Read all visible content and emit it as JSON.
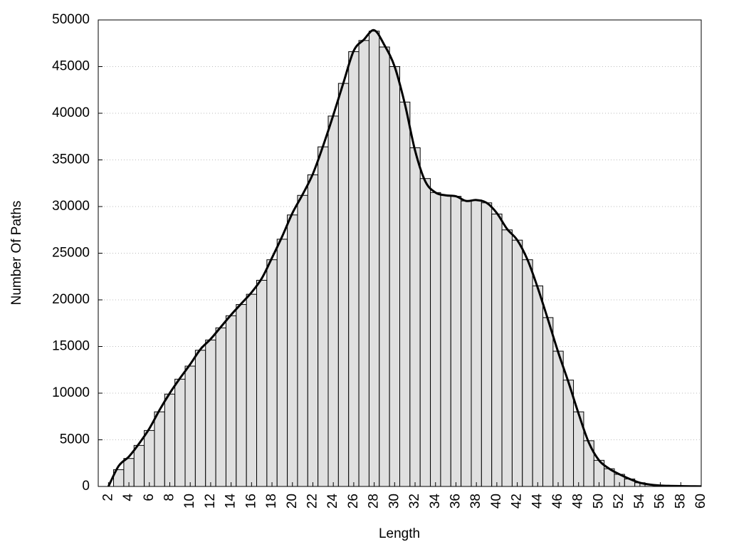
{
  "chart_data": {
    "type": "bar",
    "x_label": "Length",
    "y_label": "Number Of Paths",
    "x": [
      2,
      3,
      4,
      5,
      6,
      7,
      8,
      9,
      10,
      11,
      12,
      13,
      14,
      15,
      16,
      17,
      18,
      19,
      20,
      21,
      22,
      23,
      24,
      25,
      26,
      27,
      28,
      29,
      30,
      31,
      32,
      33,
      34,
      35,
      36,
      37,
      38,
      39,
      40,
      41,
      42,
      43,
      44,
      45,
      46,
      47,
      48,
      49,
      50,
      51,
      52,
      53,
      54,
      55,
      56,
      57,
      58,
      59,
      60
    ],
    "series": [
      {
        "type": "bar",
        "color": "#e0e0e0",
        "values": [
          0,
          1800,
          3000,
          4400,
          6000,
          8000,
          9900,
          11500,
          12900,
          14600,
          15700,
          17000,
          18300,
          19500,
          20600,
          22100,
          24300,
          26500,
          29100,
          31200,
          33400,
          36400,
          39700,
          43200,
          46600,
          47800,
          48800,
          47100,
          45000,
          41200,
          36300,
          33000,
          31500,
          31200,
          31100,
          30600,
          30700,
          30400,
          29200,
          27500,
          26400,
          24300,
          21500,
          18100,
          14500,
          11400,
          8000,
          4900,
          2800,
          1900,
          1300,
          800,
          400,
          200,
          100,
          60,
          40,
          20,
          10
        ]
      },
      {
        "type": "line",
        "color": "#000000",
        "values": [
          0,
          2200,
          3200,
          4600,
          6200,
          8200,
          10000,
          11600,
          13100,
          14700,
          15800,
          17100,
          18400,
          19600,
          20800,
          22300,
          24500,
          26800,
          29300,
          31300,
          33500,
          36500,
          39800,
          43300,
          46700,
          47900,
          48900,
          47300,
          45000,
          41000,
          36000,
          32700,
          31500,
          31200,
          31100,
          30600,
          30700,
          30400,
          29300,
          27600,
          26400,
          24300,
          21300,
          17900,
          14400,
          11200,
          7800,
          4700,
          2800,
          1900,
          1300,
          800,
          400,
          200,
          100,
          60,
          40,
          20,
          10
        ]
      }
    ],
    "xlim": [
      1,
      60
    ],
    "ylim": [
      0,
      50000
    ],
    "xticks": [
      2,
      4,
      6,
      8,
      10,
      12,
      14,
      16,
      18,
      20,
      22,
      24,
      26,
      28,
      30,
      32,
      34,
      36,
      38,
      40,
      42,
      44,
      46,
      48,
      50,
      52,
      54,
      56,
      58,
      60
    ],
    "yticks": [
      0,
      5000,
      10000,
      15000,
      20000,
      25000,
      30000,
      35000,
      40000,
      45000,
      50000
    ],
    "grid": true
  }
}
